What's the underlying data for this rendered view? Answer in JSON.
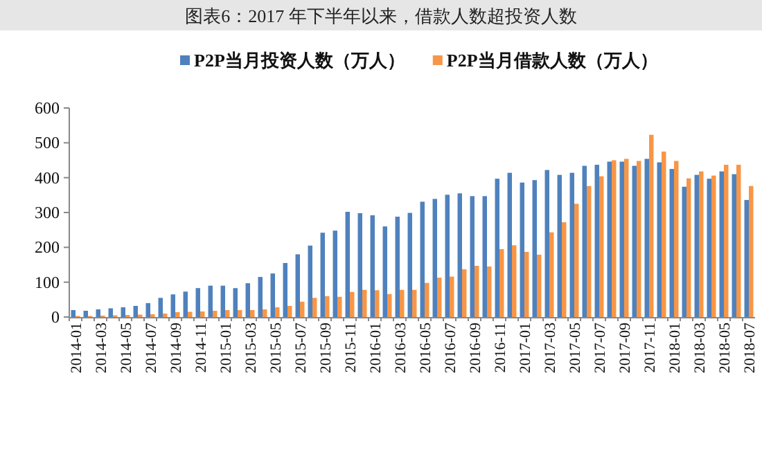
{
  "chart_data": {
    "type": "bar",
    "title": "图表6：2017 年下半年以来，借款人数超投资人数",
    "categories": [
      "2014-01",
      null,
      "2014-03",
      null,
      "2014-05",
      null,
      "2014-07",
      null,
      "2014-09",
      null,
      "2014-11",
      null,
      "2015-01",
      null,
      "2015-03",
      null,
      "2015-05",
      null,
      "2015-07",
      null,
      "2015-09",
      null,
      "2015-11",
      null,
      "2016-01",
      null,
      "2016-03",
      null,
      "2016-05",
      null,
      "2016-07",
      null,
      "2016-09",
      null,
      "2016-11",
      null,
      "2017-01",
      null,
      "2017-03",
      null,
      "2017-05",
      null,
      "2017-07",
      null,
      "2017-09",
      null,
      "2017-11",
      null,
      "2018-01",
      null,
      "2018-03",
      null,
      "2018-05",
      null,
      "2018-07"
    ],
    "series": [
      {
        "name": "P2P当月投资人数（万人）",
        "color": "#4f81bd",
        "values": [
          20,
          18,
          22,
          25,
          28,
          32,
          40,
          55,
          65,
          73,
          83,
          90,
          90,
          83,
          97,
          115,
          125,
          155,
          180,
          205,
          242,
          248,
          302,
          298,
          292,
          260,
          288,
          299,
          331,
          339,
          351,
          355,
          347,
          347,
          397,
          414,
          386,
          393,
          422,
          408,
          414,
          434,
          437,
          446,
          446,
          434,
          454,
          444,
          425,
          374,
          408,
          397,
          418,
          410,
          336
        ]
      },
      {
        "name": "P2P当月借款人数（万人）",
        "color": "#f79646",
        "values": [
          3,
          3,
          4,
          5,
          6,
          7,
          8,
          10,
          14,
          15,
          16,
          18,
          20,
          20,
          20,
          22,
          28,
          32,
          44,
          55,
          60,
          58,
          72,
          78,
          77,
          66,
          78,
          78,
          98,
          113,
          116,
          137,
          147,
          145,
          195,
          206,
          187,
          179,
          243,
          272,
          325,
          376,
          404,
          450,
          454,
          448,
          523,
          475,
          448,
          398,
          418,
          406,
          437,
          437,
          376
        ]
      }
    ],
    "ylim": [
      0,
      600
    ],
    "yticks": [
      0,
      100,
      200,
      300,
      400,
      500,
      600
    ],
    "grid": false,
    "legend": "top"
  }
}
